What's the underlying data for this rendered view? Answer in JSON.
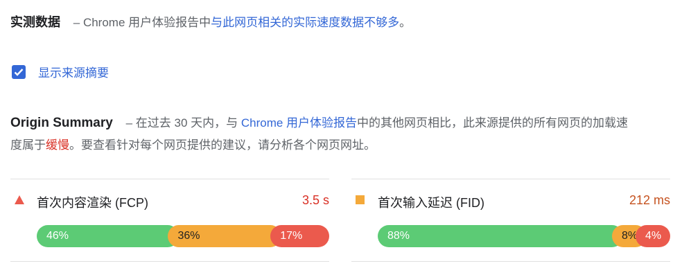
{
  "field_data": {
    "title": "实测数据",
    "dash": "–",
    "text_prefix": "Chrome 用户体验报告中",
    "text_link": "与此网页相关的实际速度数据不够多",
    "text_suffix": "。"
  },
  "origin_checkbox": {
    "label": "显示来源摘要",
    "checked": true
  },
  "origin_summary": {
    "title": "Origin Summary",
    "dash": "–",
    "text1": "在过去 30 天内，与 ",
    "link": "Chrome 用户体验报告",
    "text2": "中的其他网页相比，此来源提供的所有网页的加载速度属于",
    "rating": "缓慢",
    "text3": "。要查看针对每个网页提供的建议，请分析各个网页网址。"
  },
  "metrics": [
    {
      "icon": "triangle-icon",
      "name": "首次内容渲染 (FCP)",
      "value": "3.5 s",
      "value_color": "#d93025",
      "distribution": [
        {
          "label": "46%",
          "value": 46
        },
        {
          "label": "36%",
          "value": 36
        },
        {
          "label": "17%",
          "value": 17
        }
      ]
    },
    {
      "icon": "square-icon",
      "name": "首次输入延迟 (FID)",
      "value": "212 ms",
      "value_color": "#c5521f",
      "distribution": [
        {
          "label": "88%",
          "value": 88
        },
        {
          "label": "8%",
          "value": 8
        },
        {
          "label": "4%",
          "value": 4
        }
      ]
    }
  ],
  "colors": {
    "good": "#5ccb75",
    "average": "#f4a93a",
    "poor": "#eb5a4d",
    "link": "#3367d6"
  }
}
